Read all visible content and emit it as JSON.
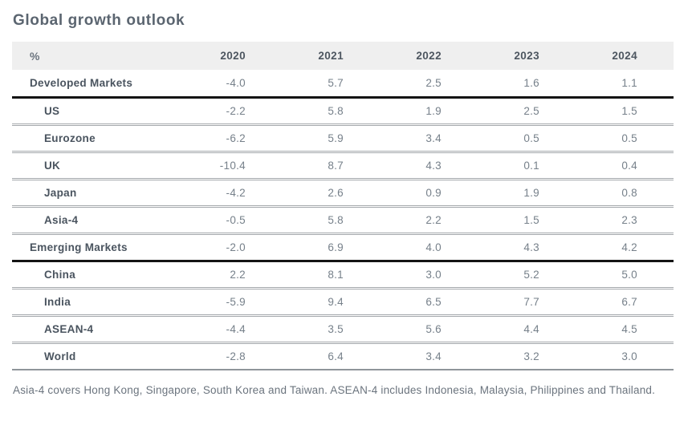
{
  "page": {
    "title": "Global growth outlook"
  },
  "table": {
    "unit_label": "%",
    "years": [
      "2020",
      "2021",
      "2022",
      "2023",
      "2024"
    ],
    "rows": [
      {
        "label": "Developed Markets",
        "level": "group",
        "values": [
          "-4.0",
          "5.7",
          "2.5",
          "1.6",
          "1.1"
        ]
      },
      {
        "label": "US",
        "level": "sub",
        "values": [
          "-2.2",
          "5.8",
          "1.9",
          "2.5",
          "1.5"
        ]
      },
      {
        "label": "Eurozone",
        "level": "sub",
        "values": [
          "-6.2",
          "5.9",
          "3.4",
          "0.5",
          "0.5"
        ]
      },
      {
        "label": "UK",
        "level": "sub",
        "values": [
          "-10.4",
          "8.7",
          "4.3",
          "0.1",
          "0.4"
        ]
      },
      {
        "label": "Japan",
        "level": "sub",
        "values": [
          "-4.2",
          "2.6",
          "0.9",
          "1.9",
          "0.8"
        ]
      },
      {
        "label": "Asia-4",
        "level": "sub",
        "values": [
          "-0.5",
          "5.8",
          "2.2",
          "1.5",
          "2.3"
        ]
      },
      {
        "label": "Emerging Markets",
        "level": "group",
        "values": [
          "-2.0",
          "6.9",
          "4.0",
          "4.3",
          "4.2"
        ]
      },
      {
        "label": "China",
        "level": "sub",
        "values": [
          "2.2",
          "8.1",
          "3.0",
          "5.2",
          "5.0"
        ]
      },
      {
        "label": "India",
        "level": "sub",
        "values": [
          "-5.9",
          "9.4",
          "6.5",
          "7.7",
          "6.7"
        ]
      },
      {
        "label": "ASEAN-4",
        "level": "sub",
        "values": [
          "-4.4",
          "3.5",
          "5.6",
          "4.4",
          "4.5"
        ]
      },
      {
        "label": "World",
        "level": "sub",
        "values": [
          "-2.8",
          "6.4",
          "3.4",
          "3.2",
          "3.0"
        ]
      }
    ]
  },
  "footnote": "Asia-4 covers Hong Kong, Singapore, South Korea and Taiwan. ASEAN-4 includes Indonesia, Malaysia, Philippines and Thailand.",
  "colors": {
    "title_text": "#5b6570",
    "label_text": "#4a545f",
    "number_text": "#76808a",
    "header_background": "#efefef",
    "section_separator": "#141414",
    "row_divider": "#a4a8ac",
    "table_end_line": "#8f959a"
  },
  "chart_data": {
    "type": "table",
    "title": "Global growth outlook",
    "unit": "%",
    "categories": [
      "2020",
      "2021",
      "2022",
      "2023",
      "2024"
    ],
    "series": [
      {
        "name": "Developed Markets",
        "group": true,
        "values": [
          -4.0,
          5.7,
          2.5,
          1.6,
          1.1
        ]
      },
      {
        "name": "US",
        "group": false,
        "values": [
          -2.2,
          5.8,
          1.9,
          2.5,
          1.5
        ]
      },
      {
        "name": "Eurozone",
        "group": false,
        "values": [
          -6.2,
          5.9,
          3.4,
          0.5,
          0.5
        ]
      },
      {
        "name": "UK",
        "group": false,
        "values": [
          -10.4,
          8.7,
          4.3,
          0.1,
          0.4
        ]
      },
      {
        "name": "Japan",
        "group": false,
        "values": [
          -4.2,
          2.6,
          0.9,
          1.9,
          0.8
        ]
      },
      {
        "name": "Asia-4",
        "group": false,
        "values": [
          -0.5,
          5.8,
          2.2,
          1.5,
          2.3
        ]
      },
      {
        "name": "Emerging Markets",
        "group": true,
        "values": [
          -2.0,
          6.9,
          4.0,
          4.3,
          4.2
        ]
      },
      {
        "name": "China",
        "group": false,
        "values": [
          2.2,
          8.1,
          3.0,
          5.2,
          5.0
        ]
      },
      {
        "name": "India",
        "group": false,
        "values": [
          -5.9,
          9.4,
          6.5,
          7.7,
          6.7
        ]
      },
      {
        "name": "ASEAN-4",
        "group": false,
        "values": [
          -4.4,
          3.5,
          5.6,
          4.4,
          4.5
        ]
      },
      {
        "name": "World",
        "group": false,
        "values": [
          -2.8,
          6.4,
          3.4,
          3.2,
          3.0
        ]
      }
    ],
    "footnote": "Asia-4 covers Hong Kong, Singapore, South Korea and Taiwan. ASEAN-4 includes Indonesia, Malaysia, Philippines and Thailand."
  }
}
